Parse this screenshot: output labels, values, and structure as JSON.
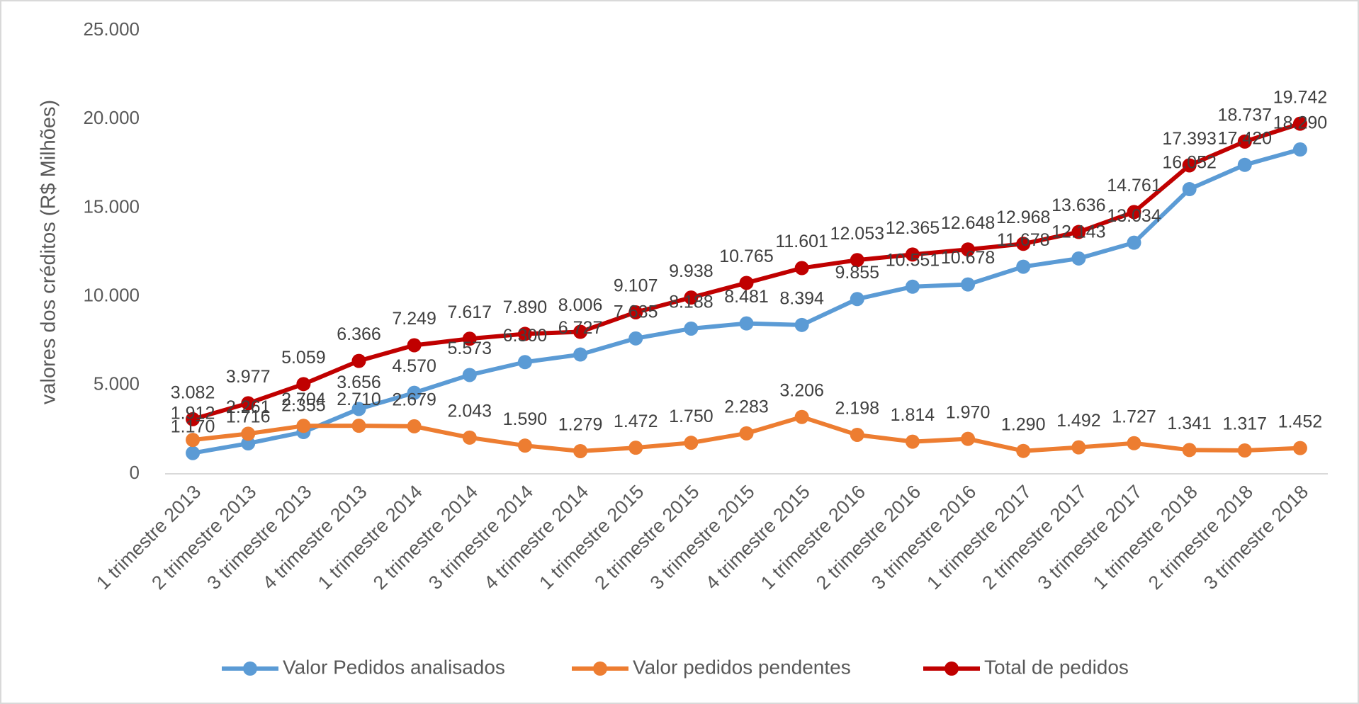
{
  "chart_data": {
    "type": "line",
    "y_label": "valores dos créditos (R$ Milhões)",
    "categories": [
      "1 trimestre 2013",
      "2 trimestre 2013",
      "3 trimestre 2013",
      "4 trimestre 2013",
      "1 trimestre 2014",
      "2 trimestre 2014",
      "3 trimestre 2014",
      "4 trimestre 2014",
      "1 trimestre 2015",
      "2 trimestre 2015",
      "3 trimestre 2015",
      "4 trimestre 2015",
      "1 trimestre 2016",
      "2 trimestre 2016",
      "3 trimestre 2016",
      "1 trimestre 2017",
      "2 trimestre 2017",
      "3 trimestre 2017",
      "1 trimestre 2018",
      "2 trimestre 2018",
      "3 trimestre 2018"
    ],
    "series": [
      {
        "name": "Valor Pedidos analisados",
        "color": "#5b9bd5",
        "values": [
          1170,
          1716,
          2355,
          3656,
          4570,
          5573,
          6300,
          6727,
          7635,
          8188,
          8481,
          8394,
          9855,
          10551,
          10678,
          11678,
          12143,
          13034,
          16052,
          17420,
          18290
        ],
        "value_labels": [
          "1.170",
          "1.716",
          "2.355",
          "3.656",
          "4.570",
          "5.573",
          "6.300",
          "6.727",
          "7.635",
          "8.188",
          "8.481",
          "8.394",
          "9.855",
          "10.551",
          "10.678",
          "11.678",
          "12.143",
          "13.034",
          "16.052",
          "17.420",
          "18.290"
        ]
      },
      {
        "name": "Valor pedidos pendentes",
        "color": "#ed7d31",
        "values": [
          1912,
          2261,
          2704,
          2710,
          2679,
          2043,
          1590,
          1279,
          1472,
          1750,
          2283,
          3206,
          2198,
          1814,
          1970,
          1290,
          1492,
          1727,
          1341,
          1317,
          1452
        ],
        "value_labels": [
          "1.912",
          "2.261",
          "2.704",
          "2.710",
          "2.679",
          "2.043",
          "1.590",
          "1.279",
          "1.472",
          "1.750",
          "2.283",
          "3.206",
          "2.198",
          "1.814",
          "1.970",
          "1.290",
          "1.492",
          "1.727",
          "1.341",
          "1.317",
          "1.452"
        ]
      },
      {
        "name": "Total de pedidos",
        "color": "#c00000",
        "values": [
          3082,
          3977,
          5059,
          6366,
          7249,
          7617,
          7890,
          8006,
          9107,
          9938,
          10765,
          11601,
          12053,
          12365,
          12648,
          12968,
          13636,
          14761,
          17393,
          18737,
          19742
        ],
        "value_labels": [
          "3.082",
          "3.977",
          "5.059",
          "6.366",
          "7.249",
          "7.617",
          "7.890",
          "8.006",
          "9.107",
          "9.938",
          "10.765",
          "11.601",
          "12.053",
          "12.365",
          "12.648",
          "12.968",
          "13.636",
          "14.761",
          "17.393",
          "18.737",
          "19.742"
        ]
      }
    ],
    "ylim": [
      0,
      25000
    ],
    "yticks": [
      0,
      {
        "value": 5000,
        "label": "5.000"
      },
      {
        "value": 10000,
        "label": "10.000"
      },
      {
        "value": 15000,
        "label": "15.000"
      },
      {
        "value": 20000,
        "label": "20.000"
      },
      {
        "value": 25000,
        "label": "25.000"
      }
    ],
    "legend": "bottom"
  }
}
